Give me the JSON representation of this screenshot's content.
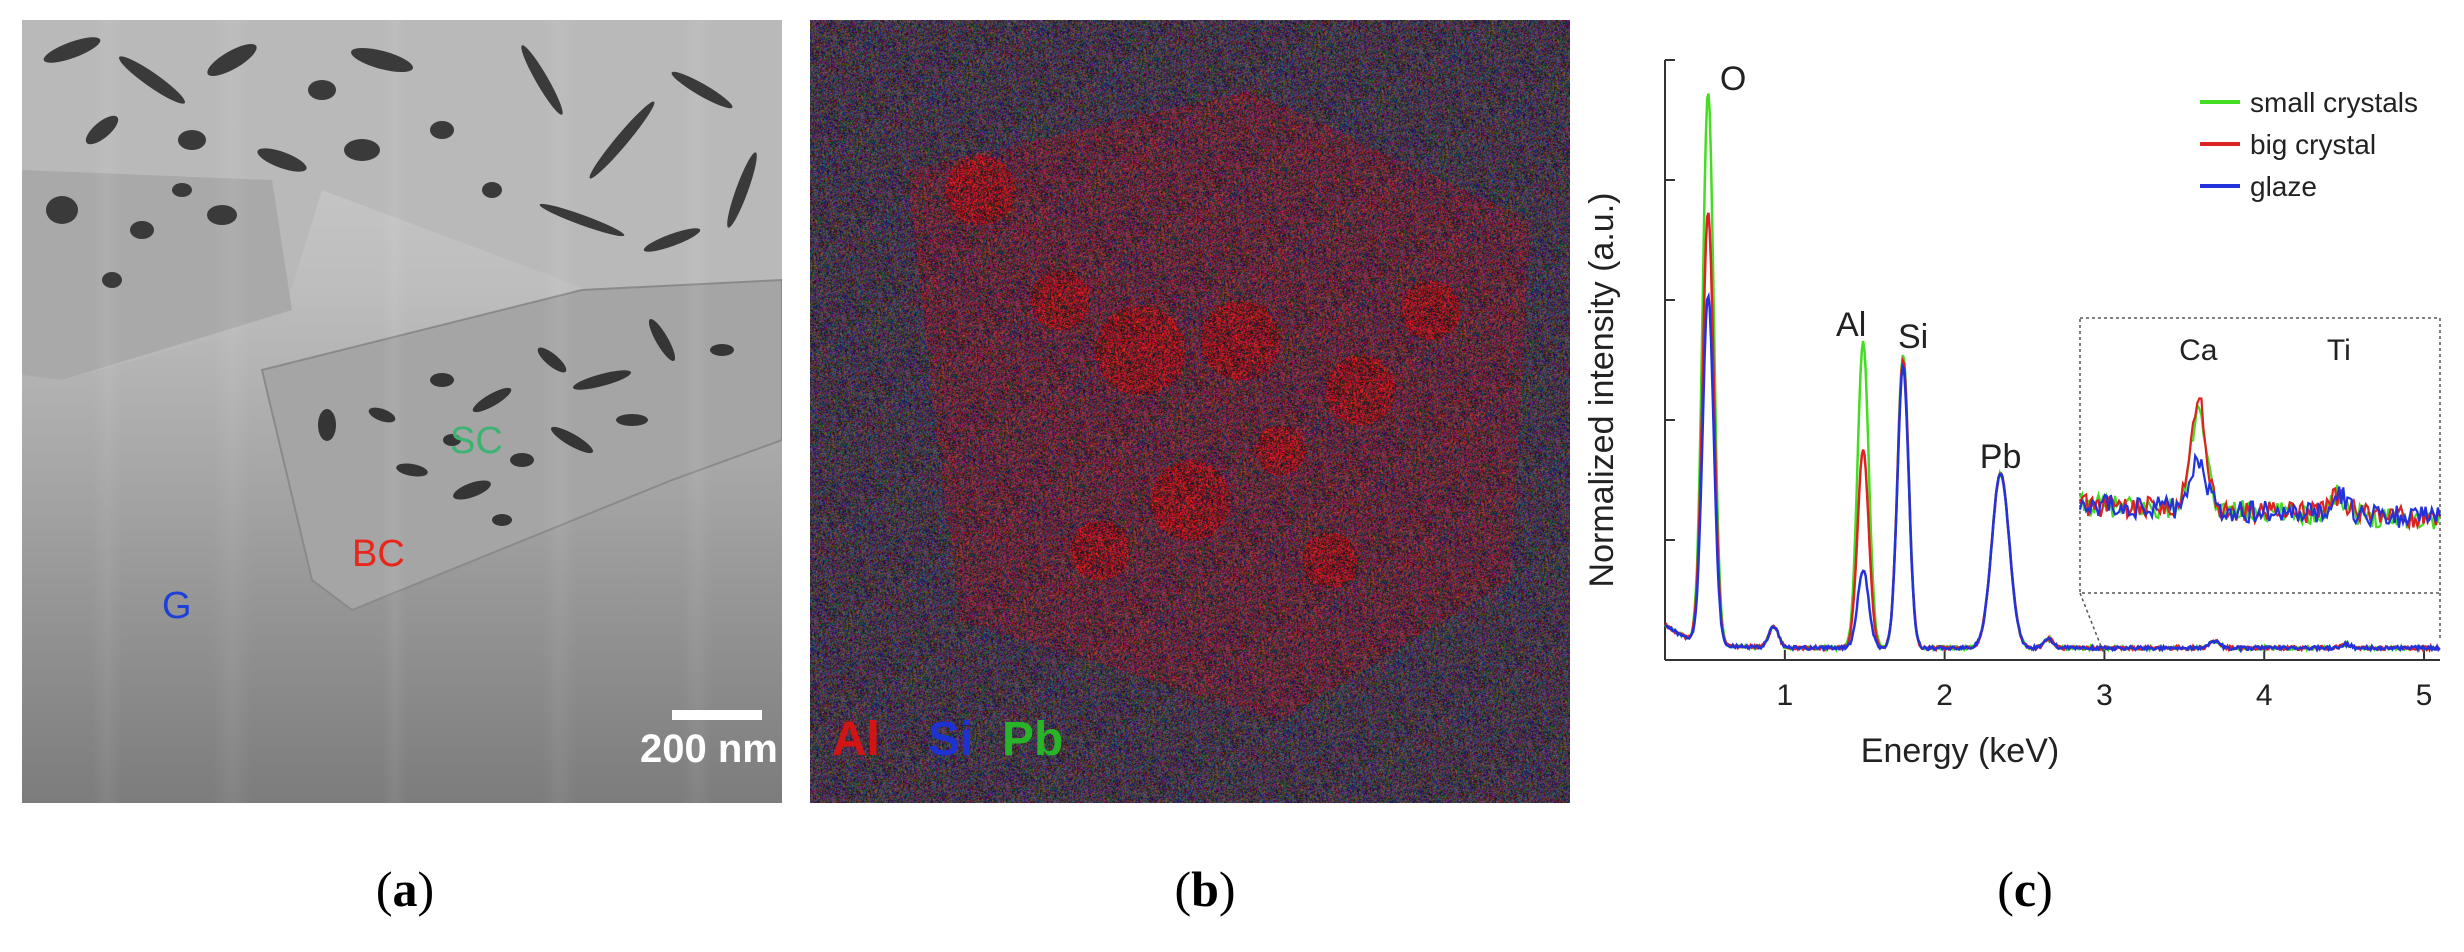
{
  "panels": {
    "a": {
      "caption_open": "(",
      "caption_letter": "a",
      "caption_close": ")",
      "labels": {
        "sc": "SC",
        "bc": "BC",
        "g": "G"
      },
      "label_colors": {
        "sc": "#3cb371",
        "bc": "#e8261c",
        "g": "#1f3fd9"
      },
      "scale_bar": "200 nm"
    },
    "b": {
      "caption_open": "(",
      "caption_letter": "b",
      "caption_close": ")",
      "element_key": [
        "Al",
        "Si",
        "Pb"
      ],
      "element_colors": [
        "#d21414",
        "#1e32d2",
        "#28b428"
      ]
    },
    "c": {
      "caption_open": "(",
      "caption_letter": "c",
      "caption_close": ")"
    }
  },
  "chart_data": {
    "type": "line",
    "xlabel": "Energy (keV)",
    "ylabel": "Normalized intensity (a.u.)",
    "xlim": [
      0.25,
      5.1
    ],
    "ylim": [
      0,
      1.0
    ],
    "xticks": [
      "1",
      "2",
      "3",
      "4",
      "5"
    ],
    "legend_position": "top-right",
    "series": [
      {
        "name": "small crystals",
        "color": "#44dd22"
      },
      {
        "name": "big crystal",
        "color": "#dd2222"
      },
      {
        "name": "glaze",
        "color": "#2233dd"
      }
    ],
    "peaks": [
      {
        "label": "O",
        "x": 0.52,
        "heights": [
          0.92,
          0.72,
          0.58
        ]
      },
      {
        "label": "Al",
        "x": 1.49,
        "heights": [
          0.51,
          0.33,
          0.13
        ]
      },
      {
        "label": "Si",
        "x": 1.74,
        "heights": [
          0.49,
          0.48,
          0.47
        ]
      },
      {
        "label": "Pb",
        "x": 2.35,
        "heights": [
          0.29,
          0.29,
          0.29
        ]
      }
    ],
    "inset": {
      "labels": [
        {
          "label": "Ca",
          "x": 3.69
        },
        {
          "label": "Ti",
          "x": 4.51
        }
      ]
    }
  }
}
